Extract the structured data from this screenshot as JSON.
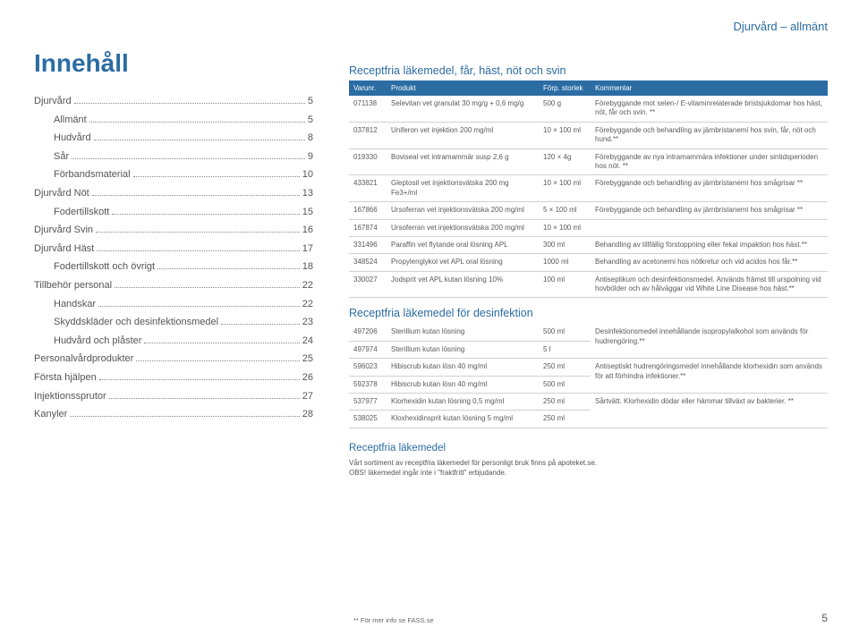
{
  "breadcrumb": "Djurvård – allmänt",
  "toc": {
    "title": "Innehåll",
    "items": [
      {
        "label": "Djurvård",
        "page": "5",
        "indent": false
      },
      {
        "label": "Allmänt",
        "page": "5",
        "indent": true
      },
      {
        "label": "Hudvård",
        "page": "8",
        "indent": true
      },
      {
        "label": "Sår",
        "page": "9",
        "indent": true
      },
      {
        "label": "Förbandsmaterial",
        "page": "10",
        "indent": true
      },
      {
        "label": "Djurvård Nöt",
        "page": "13",
        "indent": false
      },
      {
        "label": "Fodertillskott",
        "page": "15",
        "indent": true
      },
      {
        "label": "Djurvård Svin",
        "page": "16",
        "indent": false
      },
      {
        "label": "Djurvård Häst",
        "page": "17",
        "indent": false
      },
      {
        "label": "Fodertillskott och övrigt",
        "page": "18",
        "indent": true
      },
      {
        "label": "Tillbehör personal",
        "page": "22",
        "indent": false
      },
      {
        "label": "Handskar",
        "page": "22",
        "indent": true
      },
      {
        "label": "Skyddskläder och desinfektionsmedel",
        "page": "23",
        "indent": true
      },
      {
        "label": "Hudvård och plåster",
        "page": "24",
        "indent": true
      },
      {
        "label": "Personalvårdprodukter",
        "page": "25",
        "indent": false
      },
      {
        "label": "Första hjälpen",
        "page": "26",
        "indent": false
      },
      {
        "label": "Injektionssprutor",
        "page": "27",
        "indent": false
      },
      {
        "label": "Kanyler",
        "page": "28",
        "indent": false
      }
    ]
  },
  "table1": {
    "heading": "Receptfria läkemedel, får, häst, nöt och svin",
    "headers": {
      "c1": "Varunr.",
      "c2": "Produkt",
      "c3": "Förp. storlek",
      "c4": "Kommentar"
    },
    "rows": [
      {
        "c1": "071138",
        "c2": "Selevitan vet granulat 30 mg/g + 0,6 mg/g",
        "c3": "500 g",
        "c4": "Förebyggande mot selen-/ E-vitaminrelaterade bristsjukdomar hos häst, nöt, får och svin. **"
      },
      {
        "c1": "037812",
        "c2": "Uniferon vet injektion 200 mg/ml",
        "c3": "10 × 100 ml",
        "c4": "Förebyggande och behandling av järnbristanemi hos svin, får, nöt och hund.**"
      },
      {
        "c1": "019330",
        "c2": "Boviseal vet intramammär susp 2,6 g",
        "c3": "120 × 4g",
        "c4": "Förebyggande av nya intramammära infektioner under sintidsperioden hos nöt. **"
      },
      {
        "c1": "433821",
        "c2": "Gleptosil vet injektionsvätska 200 mg Fe3+/ml",
        "c3": "10 × 100 ml",
        "c4": "Förebyggande och behandling av järnbristanemi hos smågrisar **"
      },
      {
        "c1": "167866",
        "c2": "Ursoferran vet injektionsvätska 200 mg/ml",
        "c3": "5 × 100 ml",
        "c4": "Förebyggande och behandling av järnbristanemi hos smågrisar **"
      },
      {
        "c1": "167874",
        "c2": "Ursoferran vet injektionsvätska 200 mg/ml",
        "c3": "10 × 100 ml",
        "c4": ""
      },
      {
        "c1": "331496",
        "c2": "Paraffin vet flytande oral lösning APL",
        "c3": "300 ml",
        "c4": "Behandling av tillfällig förstoppning eller fekal impaktion hos häst.**"
      },
      {
        "c1": "348524",
        "c2": "Propylenglykol vet APL oral lösning",
        "c3": "1000 ml",
        "c4": "Behandling av acetonemi hos nötkretur och vid acidos hos får.**"
      },
      {
        "c1": "330027",
        "c2": "Jodsprit vet APL kutan lösning 10%",
        "c3": "100 ml",
        "c4": "Antiseptikum och desinfektionsmedel. Används främst till urspolning vid hovbölder och av hålväggar vid White Line Disease hos häst.**"
      }
    ]
  },
  "table2": {
    "heading": "Receptfria läkemedel för desinfektion",
    "rows": [
      {
        "c1": "497206",
        "c2": "Sterillium kutan lösning",
        "c3": "500 ml",
        "c4": "Desinfektionsmedel innehållande isopropylalkohol som används för hudrengöring.**",
        "merge": true
      },
      {
        "c1": "497974",
        "c2": "Sterillium kutan lösning",
        "c3": "5 l",
        "c4": ""
      },
      {
        "c1": "596023",
        "c2": "Hibiscrub kutan lösn 40 mg/ml",
        "c3": "250 ml",
        "c4": "Antiseptiskt hudrengöringsmedel innehållande klorhexidin som används för att förhindra infektioner.**",
        "merge": true
      },
      {
        "c1": "592378",
        "c2": "Hibiscrub kutan lösn 40 mg/ml",
        "c3": "500 ml",
        "c4": ""
      },
      {
        "c1": "537977",
        "c2": "Klorhexidin kutan lösning 0,5 mg/ml",
        "c3": "250 ml",
        "c4": "Sårtvätt. Klorhexidin dödar eller hämmar tillväxt av bakterier. **",
        "merge": true
      },
      {
        "c1": "538025",
        "c2": "Kloxhexidinsprit kutan lösning 5 mg/ml",
        "c3": "250 ml",
        "c4": ""
      }
    ]
  },
  "bottomNote": {
    "title": "Receptfria läkemedel",
    "line1": "Vårt sortiment av receptfria läkemedel för personligt bruk finns på apoteket.se.",
    "line2": "OBS! läkemedel ingår inte i \"fraktfritt\" erbjudande."
  },
  "footnote": "** För mer info se FASS.se",
  "pageNumber": "5",
  "colors": {
    "accent": "#2b6ca3",
    "text": "#5a5a5a",
    "border": "#d0d0d0"
  }
}
